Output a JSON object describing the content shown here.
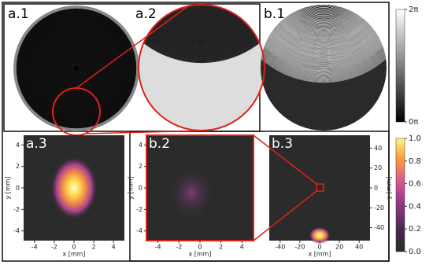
{
  "panels": [
    "a.1",
    "a.2",
    "b.1"
  ],
  "phase_colorbar": {
    "ylim": [
      0,
      2
    ],
    "yticks": [
      {
        "value": 2,
        "label": "2π"
      },
      {
        "value": 0,
        "label": "0π"
      }
    ]
  },
  "intensity_colorbar": {
    "ylim": [
      0,
      1
    ],
    "yticks": [
      {
        "value": 0,
        "label": "0.0"
      },
      0.2,
      0.4,
      0.6,
      0.8,
      {
        "value": 1,
        "label": "1.0"
      }
    ]
  },
  "plots": [
    {
      "label": "a.3",
      "xlabel": "x [mm]",
      "ylabel": "y [mm]",
      "xlim": [
        -5.1,
        5.1
      ],
      "ylim": [
        -4.9,
        4.9
      ],
      "xticks": [
        -4,
        -2,
        0,
        2,
        4
      ],
      "yticks": [
        4,
        2,
        0,
        -2,
        -4
      ]
    },
    {
      "label": "b.2",
      "xlabel": "x [mm]",
      "ylabel": "y [mm]",
      "xlim": [
        -5.1,
        5.1
      ],
      "ylim": [
        -4.9,
        4.9
      ],
      "xticks": [
        -4,
        -2,
        0,
        2,
        4
      ],
      "yticks": [
        4,
        2,
        0,
        -2,
        -4
      ]
    },
    {
      "label": "b.3",
      "xlabel": "x [mm]",
      "ylabel": "y [mm]",
      "xlim": [
        -51,
        51
      ],
      "ylim": [
        -53,
        53
      ],
      "xticks": [
        -40,
        -20,
        0,
        20,
        40
      ],
      "yticks": [
        40,
        20,
        0,
        -20,
        -40
      ]
    }
  ]
}
